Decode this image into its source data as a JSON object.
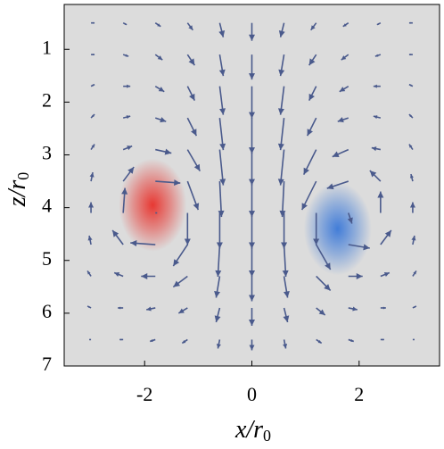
{
  "chart_data": {
    "type": "quiver",
    "xlabel": {
      "main": "x/r",
      "sub": "0"
    },
    "ylabel": {
      "main": "z/r",
      "sub": "0"
    },
    "xlim": [
      -3.5,
      3.5
    ],
    "ylim": [
      7,
      0.15
    ],
    "xticks": [
      -2,
      0,
      2
    ],
    "yticks": [
      1,
      2,
      3,
      4,
      5,
      6,
      7
    ],
    "background": "#dcdcdc",
    "arrow_color": "#4a5a8c",
    "vortices": [
      {
        "x": -1.85,
        "z": 3.95,
        "color": "#e8302a"
      },
      {
        "x": 1.6,
        "z": 4.4,
        "color": "#3a78d8"
      }
    ],
    "x": [
      -3,
      -2.4,
      -1.8,
      -1.2,
      -0.6,
      0,
      0.6,
      1.2,
      1.8,
      2.4,
      3
    ],
    "z": [
      0.5,
      1.1,
      1.7,
      2.3,
      2.9,
      3.5,
      4.1,
      4.7,
      5.3,
      5.9,
      6.5
    ],
    "u": [
      [
        0.1,
        0.1,
        0.15,
        0.15,
        0.1,
        0,
        -0.1,
        -0.15,
        -0.15,
        -0.1,
        -0.1
      ],
      [
        0.1,
        0.15,
        0.2,
        0.2,
        0.1,
        0,
        -0.1,
        -0.2,
        -0.2,
        -0.15,
        -0.1
      ],
      [
        0.1,
        0.2,
        0.25,
        0.2,
        0.1,
        0,
        -0.1,
        -0.2,
        -0.25,
        -0.2,
        -0.1
      ],
      [
        0.1,
        0.2,
        0.3,
        0.25,
        0.1,
        0,
        -0.1,
        -0.25,
        -0.3,
        -0.2,
        -0.1
      ],
      [
        0.1,
        0.25,
        0.45,
        0.35,
        0.1,
        0,
        -0.1,
        -0.35,
        -0.45,
        -0.25,
        -0.1
      ],
      [
        0.05,
        0.3,
        0.7,
        0.3,
        0.05,
        0,
        -0.05,
        -0.4,
        -0.6,
        -0.3,
        -0.05
      ],
      [
        0,
        0.05,
        0.05,
        0,
        0,
        0,
        0,
        0,
        0.1,
        0,
        0
      ],
      [
        -0.05,
        -0.3,
        -0.7,
        -0.4,
        -0.05,
        0,
        0.05,
        0.4,
        0.6,
        0.3,
        0.05
      ],
      [
        -0.1,
        -0.25,
        -0.4,
        -0.4,
        -0.1,
        0,
        0.1,
        0.4,
        0.4,
        0.25,
        0.1
      ],
      [
        -0.1,
        -0.15,
        -0.25,
        -0.25,
        -0.1,
        0,
        0.1,
        0.25,
        0.25,
        0.15,
        0.1
      ],
      [
        -0.05,
        -0.1,
        -0.15,
        -0.15,
        -0.05,
        0,
        0.05,
        0.15,
        0.15,
        0.1,
        0.05
      ]
    ],
    "v": [
      [
        0,
        0.05,
        0.1,
        0.2,
        0.4,
        0.5,
        0.4,
        0.2,
        0.1,
        0.05,
        0
      ],
      [
        0,
        0.05,
        0.15,
        0.3,
        0.6,
        0.7,
        0.6,
        0.3,
        0.15,
        0.05,
        0
      ],
      [
        -0.05,
        0,
        0.15,
        0.4,
        0.8,
        0.9,
        0.8,
        0.4,
        0.15,
        0,
        -0.05
      ],
      [
        -0.1,
        -0.05,
        0.1,
        0.5,
        0.9,
        1.0,
        0.9,
        0.5,
        0.1,
        -0.05,
        -0.1
      ],
      [
        -0.15,
        -0.1,
        0.1,
        0.6,
        1.0,
        1.0,
        1.0,
        0.7,
        0.2,
        -0.05,
        -0.15
      ],
      [
        -0.25,
        -0.4,
        0.05,
        0.8,
        1.0,
        1.0,
        1.0,
        0.8,
        0.2,
        -0.3,
        -0.2
      ],
      [
        -0.3,
        -0.7,
        0,
        0.9,
        1.0,
        1.0,
        1.0,
        0.9,
        0.3,
        -0.6,
        -0.3
      ],
      [
        -0.25,
        -0.4,
        -0.05,
        0.6,
        0.9,
        0.9,
        0.9,
        0.7,
        0.1,
        -0.4,
        -0.25
      ],
      [
        -0.15,
        -0.1,
        0,
        0.3,
        0.6,
        0.7,
        0.6,
        0.4,
        0,
        -0.1,
        -0.15
      ],
      [
        -0.05,
        0,
        0.05,
        0.15,
        0.4,
        0.5,
        0.4,
        0.2,
        0.05,
        0,
        -0.05
      ],
      [
        0,
        0,
        0.05,
        0.1,
        0.25,
        0.3,
        0.25,
        0.1,
        0.05,
        0,
        0
      ]
    ]
  }
}
